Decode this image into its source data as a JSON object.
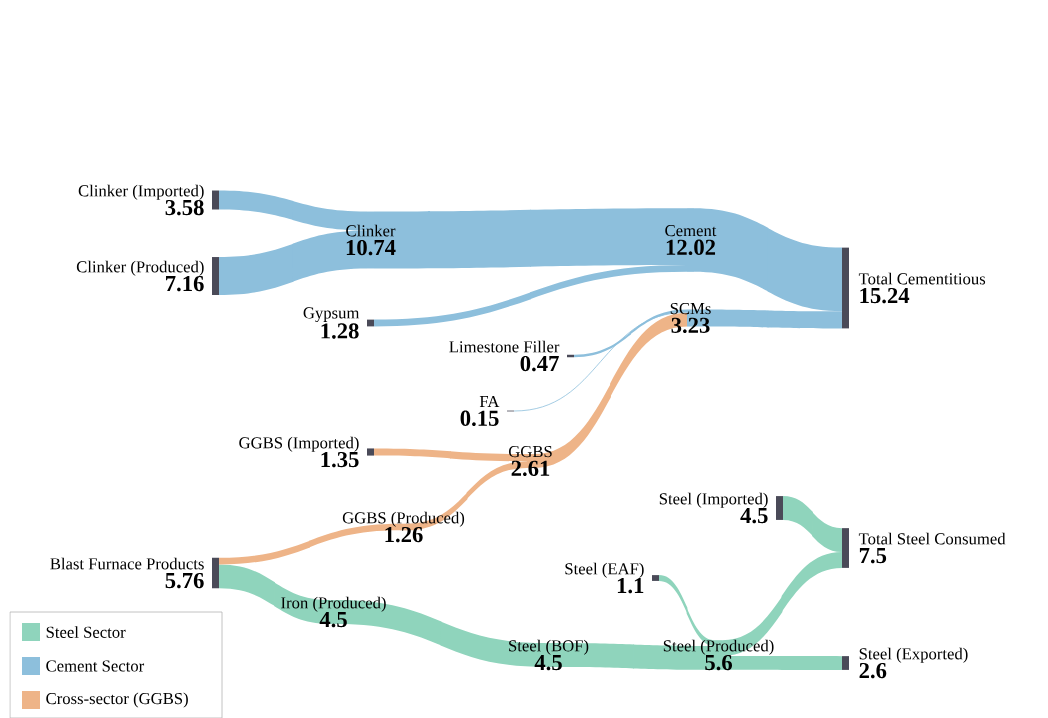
{
  "chart_data": {
    "type": "other",
    "categories": [
      "Clinker (Imported)",
      "Clinker (Produced)",
      "Gypsum",
      "Clinker",
      "Cement",
      "Limestone Filler",
      "FA",
      "GGBS (Imported)",
      "Blast Furnace Products",
      "GGBS (Produced)",
      "GGBS",
      "SCMs",
      "Total Cementitious",
      "Iron (Produced)",
      "Steel (BOF)",
      "Steel (EAF)",
      "Steel (Produced)",
      "Steel (Imported)",
      "Total Steel Consumed",
      "Steel (Exported)"
    ],
    "colors": [
      "#8dbfdc",
      "#8dbfdc",
      "#8dbfdc",
      "#8dbfdc",
      "#8dbfdc",
      "#8dbfdc",
      "#8dbfdc",
      "#eeb488",
      "#8fd4bc",
      "#eeb488",
      "#eeb488",
      "#8dbfdc",
      "#8dbfdc",
      "#8fd4bc",
      "#8fd4bc",
      "#8fd4bc",
      "#8fd4bc",
      "#8fd4bc",
      "#8fd4bc",
      "#8fd4bc"
    ],
    "series": [
      {
        "name": "Steel Sector",
        "color": "#8fd4bc",
        "values": [
          null,
          null,
          null,
          null,
          null,
          null,
          null,
          null,
          5.76,
          null,
          null,
          null,
          null,
          4.5,
          4.5,
          1.1,
          5.6,
          4.5,
          7.5,
          2.6
        ]
      },
      {
        "name": "Cement Sector",
        "color": "#8dbfdc",
        "values": [
          3.58,
          7.16,
          1.28,
          10.74,
          12.02,
          0.47,
          0.15,
          null,
          null,
          null,
          null,
          3.23,
          15.24,
          null,
          null,
          null,
          null,
          null,
          null,
          null
        ]
      },
      {
        "name": "Cross-sector (GGBS)",
        "color": "#eeb488",
        "values": [
          null,
          null,
          null,
          null,
          null,
          null,
          null,
          1.35,
          null,
          1.26,
          2.61,
          null,
          null,
          null,
          null,
          null,
          null,
          null,
          null,
          null
        ]
      }
    ],
    "data_labels": true,
    "legend": "bottom left"
  }
}
